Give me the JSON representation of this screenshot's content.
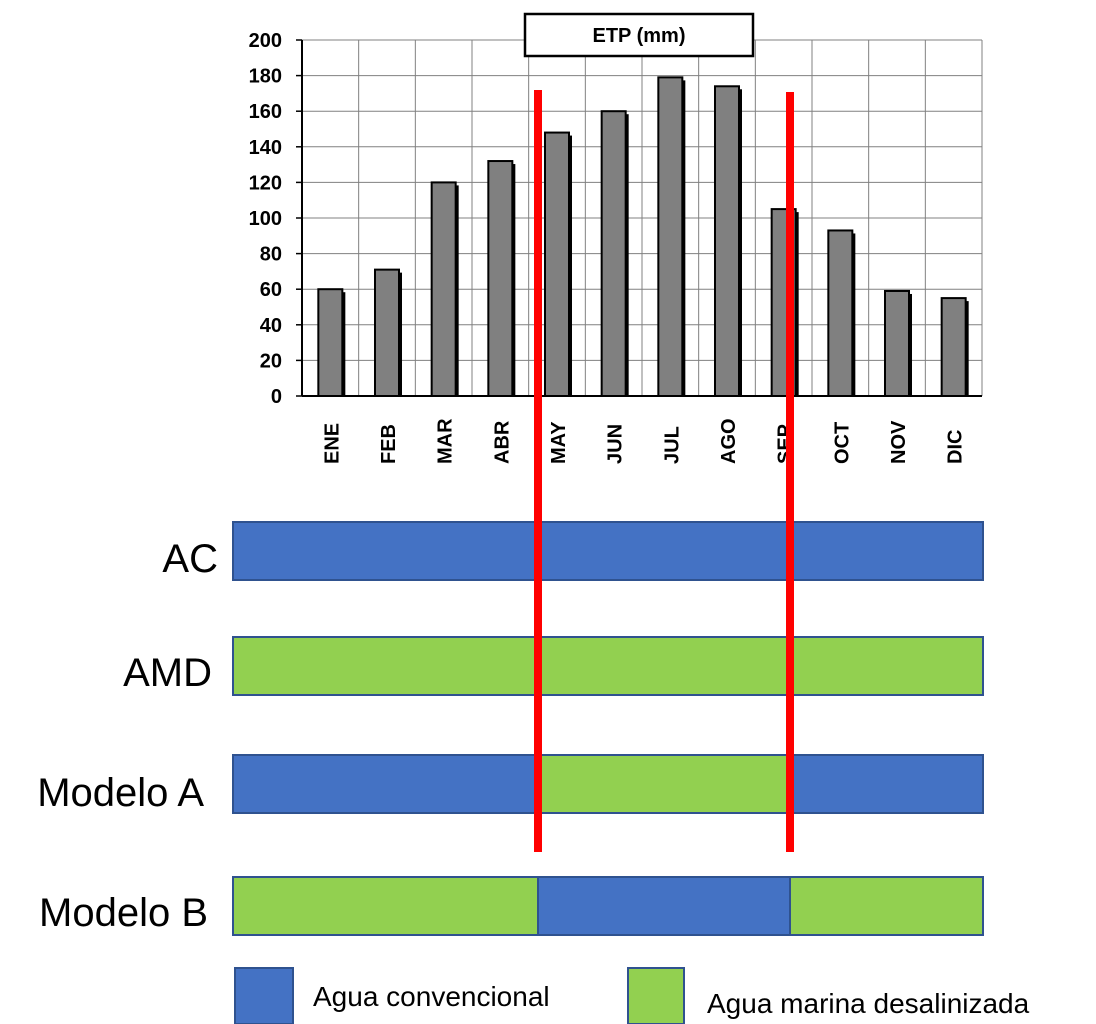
{
  "chart_data": {
    "type": "bar",
    "title": "ETP (mm)",
    "categories": [
      "ENE",
      "FEB",
      "MAR",
      "ABR",
      "MAY",
      "JUN",
      "JUL",
      "AGO",
      "SEP",
      "OCT",
      "NOV",
      "DIC"
    ],
    "values": [
      60,
      71,
      120,
      132,
      148,
      160,
      179,
      174,
      105,
      93,
      59,
      55
    ],
    "ylim": [
      0,
      200
    ],
    "yticks": [
      0,
      20,
      40,
      60,
      80,
      100,
      120,
      140,
      160,
      180,
      200
    ],
    "grid": true,
    "bar_color": "#808080",
    "highlight_lines": {
      "color": "#ff0000",
      "positions": [
        "MAY",
        "SEP"
      ]
    }
  },
  "rows": [
    {
      "label": "AC",
      "segments": [
        {
          "type": "convencional"
        }
      ]
    },
    {
      "label": "AMD",
      "segments": [
        {
          "type": "desalinizada"
        }
      ]
    },
    {
      "label": "Modelo A",
      "segments": [
        {
          "type": "convencional"
        },
        {
          "type": "desalinizada"
        },
        {
          "type": "convencional"
        }
      ]
    },
    {
      "label": "Modelo B",
      "segments": [
        {
          "type": "desalinizada"
        },
        {
          "type": "convencional"
        },
        {
          "type": "desalinizada"
        }
      ]
    }
  ],
  "legend": [
    {
      "key": "convencional",
      "label": "Agua convencional"
    },
    {
      "key": "desalinizada",
      "label": "Agua marina desalinizada"
    }
  ],
  "colors": {
    "convencional": "#4472c4",
    "desalinizada": "#92d050",
    "border": "#2f528f"
  }
}
